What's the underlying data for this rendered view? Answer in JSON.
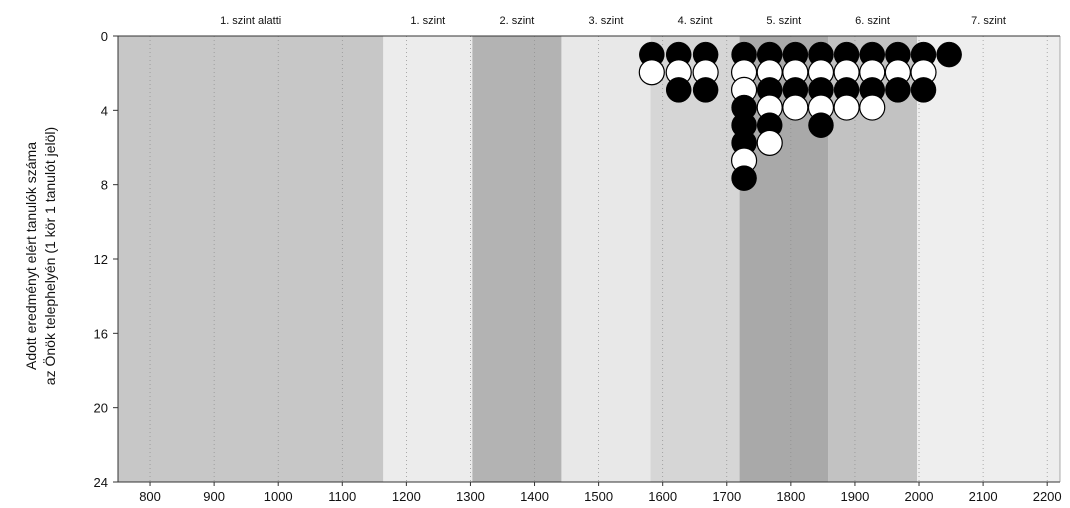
{
  "chart_data": {
    "type": "scatter",
    "title": "",
    "xlabel": "",
    "ylabel_lines": [
      "Adott eredményt elért tanulók száma",
      "az Önök telephelyén (1 kör 1 tanulót jelöl)"
    ],
    "xlim": [
      750,
      2220
    ],
    "ylim": [
      0,
      24
    ],
    "y_inverted": true,
    "x_ticks": [
      800,
      900,
      1000,
      1100,
      1200,
      1300,
      1400,
      1500,
      1600,
      1700,
      1800,
      1900,
      2000,
      2100,
      2200
    ],
    "y_ticks": [
      0,
      4,
      8,
      12,
      16,
      20,
      24
    ],
    "grid": "vertical-dotted",
    "levels": [
      {
        "label": "1. szint alatti",
        "from": 750,
        "to": 1164,
        "color": "#c7c7c7"
      },
      {
        "label": "1. szint",
        "from": 1164,
        "to": 1303,
        "color": "#ececec"
      },
      {
        "label": "2. szint",
        "from": 1303,
        "to": 1442,
        "color": "#b3b3b3"
      },
      {
        "label": "3. szint",
        "from": 1442,
        "to": 1581,
        "color": "#e8e8e8"
      },
      {
        "label": "4. szint",
        "from": 1581,
        "to": 1720,
        "color": "#d6d6d6"
      },
      {
        "label": "5. szint",
        "from": 1720,
        "to": 1858,
        "color": "#a9a9a9"
      },
      {
        "label": "6. szint",
        "from": 1858,
        "to": 1997,
        "color": "#c2c2c2"
      },
      {
        "label": "7. szint",
        "from": 1997,
        "to": 2220,
        "color": "#eeeeee"
      }
    ],
    "series": [
      {
        "color": "#000000",
        "x": 1583,
        "count": 1
      },
      {
        "color": "#ffffff",
        "x": 1583,
        "count": 1
      },
      {
        "color": "#000000",
        "x": 1625,
        "count": 1
      },
      {
        "color": "#ffffff",
        "x": 1625,
        "count": 1
      },
      {
        "color": "#000000",
        "x": 1625,
        "count": 1
      },
      {
        "color": "#000000",
        "x": 1667,
        "count": 1
      },
      {
        "color": "#ffffff",
        "x": 1667,
        "count": 1
      },
      {
        "color": "#000000",
        "x": 1667,
        "count": 1
      }
    ],
    "columns": [
      {
        "x": 1583,
        "dots": [
          "black",
          "white"
        ]
      },
      {
        "x": 1625,
        "dots": [
          "black",
          "white",
          "black"
        ]
      },
      {
        "x": 1667,
        "dots": [
          "black",
          "white",
          "black"
        ]
      },
      {
        "x": 1727,
        "dots": [
          "black",
          "white",
          "white",
          "black",
          "black",
          "black",
          "white",
          "black"
        ]
      },
      {
        "x": 1767,
        "dots": [
          "black",
          "white",
          "black",
          "white",
          "black",
          "white"
        ]
      },
      {
        "x": 1807,
        "dots": [
          "black",
          "white",
          "black",
          "white"
        ]
      },
      {
        "x": 1847,
        "dots": [
          "black",
          "white",
          "black",
          "white",
          "black"
        ]
      },
      {
        "x": 1887,
        "dots": [
          "black",
          "white",
          "black",
          "white"
        ]
      },
      {
        "x": 1927,
        "dots": [
          "black",
          "white",
          "black",
          "white"
        ]
      },
      {
        "x": 1967,
        "dots": [
          "black",
          "white",
          "black"
        ]
      },
      {
        "x": 2007,
        "dots": [
          "black",
          "white",
          "black"
        ]
      },
      {
        "x": 2047,
        "dots": [
          "black"
        ]
      }
    ]
  }
}
